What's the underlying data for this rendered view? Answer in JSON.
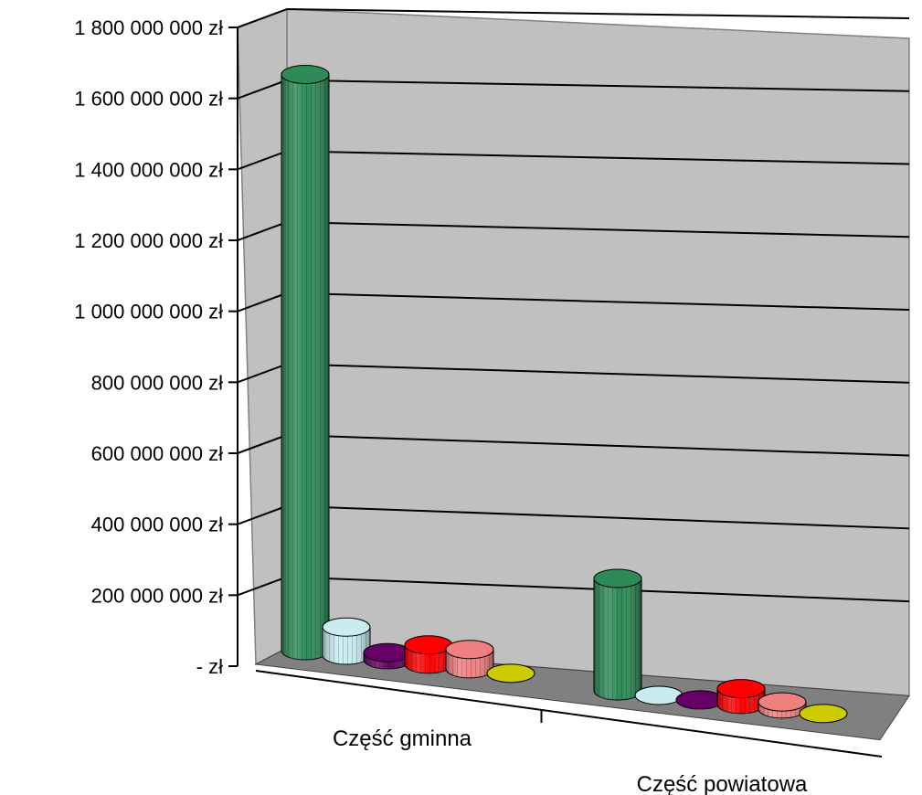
{
  "chart_data": {
    "type": "bar",
    "style": "3d-cylinder",
    "categories": [
      "Część gminna",
      "Część powiatowa"
    ],
    "series": [
      {
        "color": "#2e8b57",
        "values": [
          1640000000,
          320000000
        ]
      },
      {
        "color": "#c8ecf0",
        "values": [
          80000000,
          0
        ]
      },
      {
        "color": "#660066",
        "values": [
          20000000,
          0
        ]
      },
      {
        "color": "#ff0000",
        "values": [
          55000000,
          45000000
        ]
      },
      {
        "color": "#f08080",
        "values": [
          55000000,
          20000000
        ]
      },
      {
        "color": "#cccc00",
        "values": [
          0,
          0
        ]
      }
    ],
    "y_ticks": [
      {
        "value": 0,
        "label": "- zł"
      },
      {
        "value": 200000000,
        "label": "200 000 000 zł"
      },
      {
        "value": 400000000,
        "label": "400 000 000 zł"
      },
      {
        "value": 600000000,
        "label": "600 000 000 zł"
      },
      {
        "value": 800000000,
        "label": "800 000 000 zł"
      },
      {
        "value": 1000000000,
        "label": "1 000 000 000 zł"
      },
      {
        "value": 1200000000,
        "label": "1 200 000 000 zł"
      },
      {
        "value": 1400000000,
        "label": "1 400 000 000 zł"
      },
      {
        "value": 1600000000,
        "label": "1 600 000 000 zł"
      },
      {
        "value": 1800000000,
        "label": "1 800 000 000 zł"
      }
    ],
    "ylim": [
      0,
      1800000000
    ],
    "title": "",
    "xlabel": "",
    "ylabel": "",
    "grid": true,
    "legend": "none"
  }
}
